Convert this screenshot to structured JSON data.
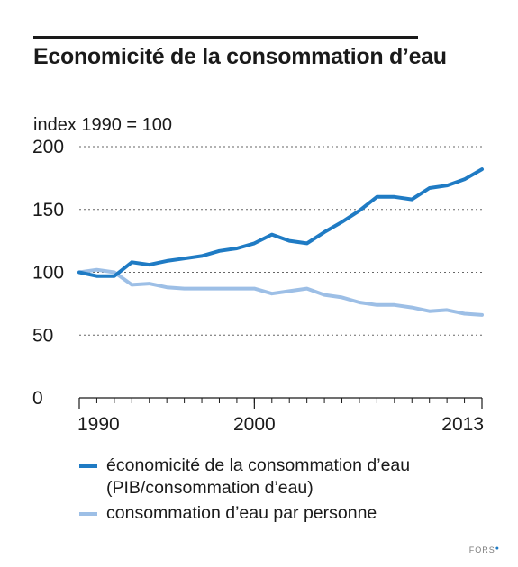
{
  "title": "Economicité de la consommation d’eau",
  "unit_label": "index 1990 = 100",
  "credit": "FORS",
  "colors": {
    "series_dark": "#1f7bc4",
    "series_light": "#9dbfe6",
    "axis": "#1a1a1a",
    "grid": "#666666"
  },
  "chart_data": {
    "type": "line",
    "x_tick_labels": [
      "1990",
      "2000",
      "2013"
    ],
    "y_tick_labels": [
      "0",
      "50",
      "100",
      "150",
      "200"
    ],
    "ylim": [
      0,
      200
    ],
    "xlim": [
      1990,
      2013
    ],
    "grid": true,
    "legend_position": "bottom",
    "x": [
      1990,
      1991,
      1992,
      1993,
      1994,
      1995,
      1996,
      1997,
      1998,
      1999,
      2000,
      2001,
      2002,
      2003,
      2004,
      2005,
      2006,
      2007,
      2008,
      2009,
      2010,
      2011,
      2012,
      2013
    ],
    "series": [
      {
        "name": "économicité de la consommation d’eau\n(PIB/consommation d’eau)",
        "color": "#1f7bc4",
        "values": [
          100,
          97,
          97,
          108,
          106,
          109,
          111,
          113,
          117,
          119,
          123,
          130,
          125,
          123,
          132,
          140,
          149,
          160,
          160,
          158,
          167,
          169,
          174,
          182
        ]
      },
      {
        "name": "consommation d’eau par personne",
        "color": "#9dbfe6",
        "values": [
          100,
          102,
          100,
          90,
          91,
          88,
          87,
          87,
          87,
          87,
          87,
          83,
          85,
          87,
          82,
          80,
          76,
          74,
          74,
          72,
          69,
          70,
          67,
          66
        ]
      }
    ]
  }
}
